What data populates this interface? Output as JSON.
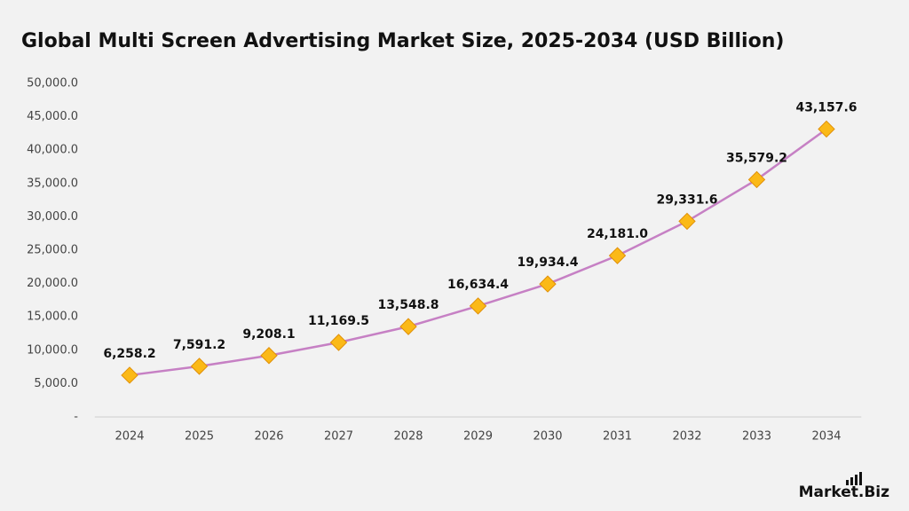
{
  "chart_data": {
    "type": "line",
    "title": "Global Multi Screen Advertising Market Size, 2025-2034 (USD Billion)",
    "categories": [
      "2024",
      "2025",
      "2026",
      "2027",
      "2028",
      "2029",
      "2030",
      "2031",
      "2032",
      "2033",
      "2034"
    ],
    "values": [
      6258.2,
      7591.2,
      9208.1,
      11169.5,
      13548.8,
      16634.4,
      19934.4,
      24181.0,
      29331.6,
      35579.2,
      43157.6
    ],
    "value_labels": [
      "6,258.2",
      "7,591.2",
      "9,208.1",
      "11,169.5",
      "13,548.8",
      "16,634.4",
      "19,934.4",
      "24,181.0",
      "29,331.6",
      "35,579.2",
      "43,157.6"
    ],
    "color": "#c680c4",
    "marker_color": "#fbb917",
    "ylim": [
      0,
      50000
    ],
    "yticks": [
      {
        "value": 0,
        "label": "-"
      },
      {
        "value": 5000,
        "label": "5,000.0"
      },
      {
        "value": 10000,
        "label": "10,000.0"
      },
      {
        "value": 15000,
        "label": "15,000.0"
      },
      {
        "value": 20000,
        "label": "20,000.0"
      },
      {
        "value": 25000,
        "label": "25,000.0"
      },
      {
        "value": 30000,
        "label": "30,000.0"
      },
      {
        "value": 35000,
        "label": "35,000.0"
      },
      {
        "value": 40000,
        "label": "40,000.0"
      },
      {
        "value": 45000,
        "label": "45,000.0"
      },
      {
        "value": 50000,
        "label": "50,000.0"
      }
    ],
    "grid": false,
    "brand": "Market.Biz"
  }
}
